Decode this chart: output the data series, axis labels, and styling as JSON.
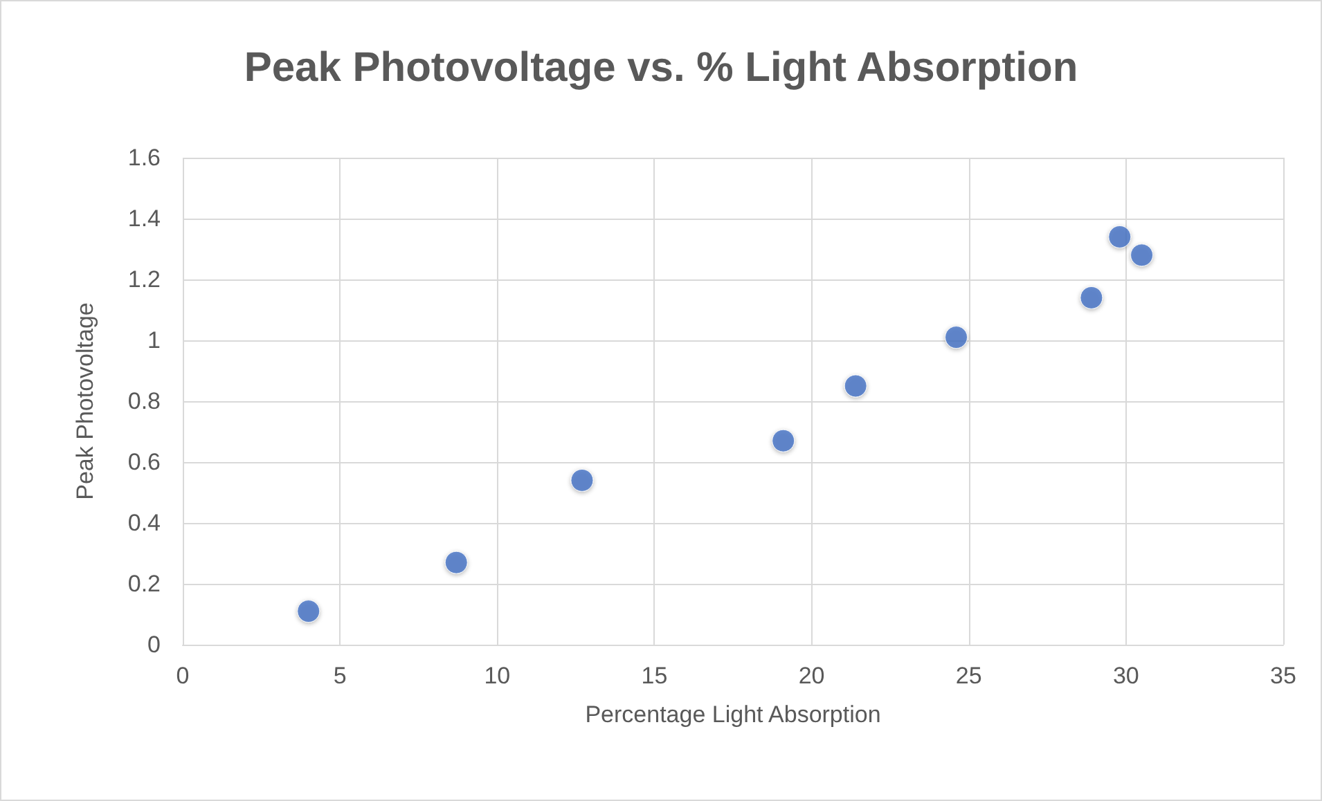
{
  "chart_data": {
    "type": "scatter",
    "title": "Peak Photovoltage vs. % Light Absorption",
    "xlabel": "Percentage Light Absorption",
    "ylabel": "Peak Photovoltage",
    "x": [
      4.0,
      8.7,
      12.7,
      19.1,
      21.4,
      24.6,
      28.9,
      29.8,
      30.5
    ],
    "series": [
      {
        "color": "#4472c4",
        "values": [
          0.11,
          0.27,
          0.54,
          0.67,
          0.85,
          1.01,
          1.14,
          1.34,
          1.28
        ]
      }
    ],
    "xlim": [
      0,
      35
    ],
    "xticks": [
      0,
      5,
      10,
      15,
      20,
      25,
      30,
      35
    ],
    "ylim": [
      0,
      1.6
    ],
    "yticks": [
      0,
      0.2,
      0.4,
      0.6,
      0.8,
      1,
      1.2,
      1.4,
      1.6
    ],
    "grid": true,
    "marker": "circle"
  }
}
